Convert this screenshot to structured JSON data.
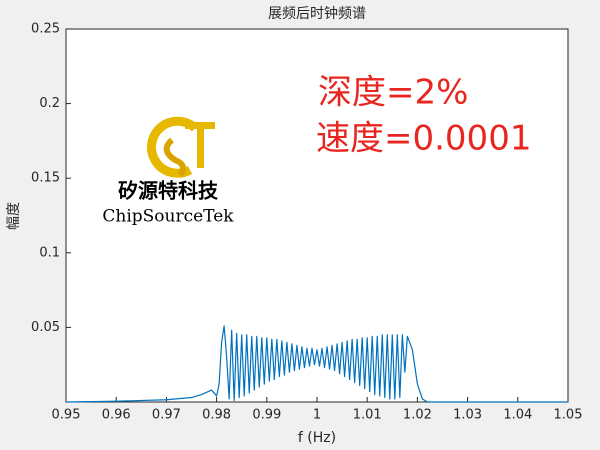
{
  "chart_data": {
    "type": "line",
    "title": "展频后时钟频谱",
    "x_label": "f (Hz)",
    "y_label": "幅度",
    "annotations": [
      "深度=2%",
      "速度=0.0001"
    ],
    "logo_texts": [
      "矽源特科技",
      "ChipSourceTek"
    ],
    "x": [
      0.95,
      0.96,
      0.97,
      0.975,
      0.977,
      0.979,
      0.98,
      0.9805,
      0.981,
      0.9815,
      0.982,
      0.9825,
      0.983,
      0.9835,
      0.984,
      0.9845,
      0.985,
      0.9855,
      0.986,
      0.9865,
      0.987,
      0.9875,
      0.988,
      0.9885,
      0.989,
      0.9895,
      0.99,
      0.9905,
      0.991,
      0.9915,
      0.992,
      0.9925,
      0.993,
      0.9935,
      0.994,
      0.9945,
      0.995,
      0.9955,
      0.996,
      0.9965,
      0.997,
      0.9975,
      0.998,
      0.9985,
      0.999,
      0.9995,
      1,
      1.0005,
      1.001,
      1.0015,
      1.002,
      1.0025,
      1.003,
      1.0035,
      1.004,
      1.0045,
      1.005,
      1.0055,
      1.006,
      1.0065,
      1.007,
      1.0075,
      1.008,
      1.0085,
      1.009,
      1.0095,
      1.01,
      1.0105,
      1.011,
      1.0115,
      1.012,
      1.0125,
      1.013,
      1.0135,
      1.014,
      1.0145,
      1.015,
      1.0155,
      1.016,
      1.0165,
      1.017,
      1.0175,
      1.018,
      1.019,
      1.02,
      1.021,
      1.022,
      1.03,
      1.05
    ],
    "series": [
      {
        "color": "#0072bd",
        "values": [
          0,
          0.0005,
          0.0015,
          0.003,
          0.005,
          0.008,
          0.004,
          0.012,
          0.04,
          0.051,
          0.03,
          0.002,
          0.048,
          0.001,
          0.046,
          0.003,
          0.045,
          0.004,
          0.045,
          0.006,
          0.044,
          0.008,
          0.044,
          0.01,
          0.043,
          0.012,
          0.043,
          0.014,
          0.042,
          0.015,
          0.042,
          0.017,
          0.041,
          0.018,
          0.04,
          0.02,
          0.039,
          0.021,
          0.038,
          0.022,
          0.037,
          0.023,
          0.036,
          0.024,
          0.036,
          0.025,
          0.035,
          0.024,
          0.036,
          0.023,
          0.037,
          0.022,
          0.038,
          0.021,
          0.039,
          0.019,
          0.04,
          0.017,
          0.041,
          0.015,
          0.042,
          0.013,
          0.042,
          0.011,
          0.043,
          0.009,
          0.043,
          0.007,
          0.044,
          0.005,
          0.044,
          0.004,
          0.045,
          0.003,
          0.045,
          0.002,
          0.045,
          0.002,
          0.045,
          0.003,
          0.045,
          0.02,
          0.044,
          0.035,
          0.012,
          0.002,
          0,
          0,
          0
        ]
      }
    ],
    "xlim": [
      0.95,
      1.05
    ],
    "ylim": [
      0,
      0.25
    ],
    "xticks": [
      0.95,
      0.96,
      0.97,
      0.98,
      0.99,
      1,
      1.01,
      1.02,
      1.03,
      1.04,
      1.05
    ],
    "yticks": [
      0.05,
      0.1,
      0.15,
      0.2,
      0.25
    ]
  }
}
